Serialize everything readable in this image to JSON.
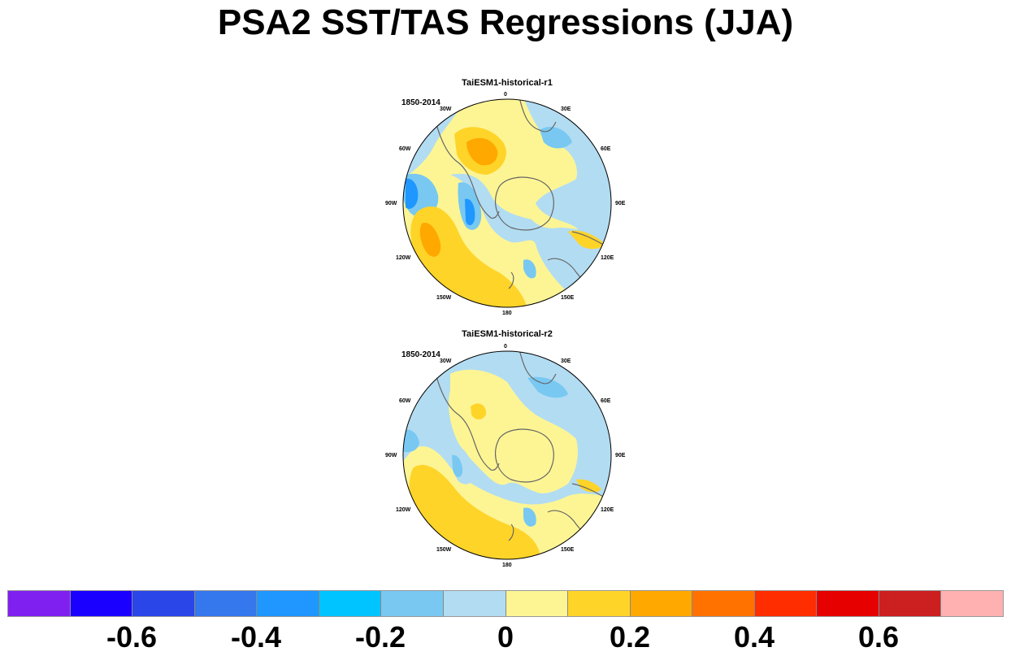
{
  "title": "PSA2 SST/TAS Regressions (JJA)",
  "panels": [
    {
      "title": "TaiESM1-historical-r1",
      "period": "1850-2014",
      "lon_labels": [
        "0",
        "30E",
        "60E",
        "90E",
        "120E",
        "150E",
        "180",
        "150W",
        "120W",
        "90W",
        "60W",
        "30W"
      ]
    },
    {
      "title": "TaiESM1-historical-r2",
      "period": "1850-2014",
      "lon_labels": [
        "0",
        "30E",
        "60E",
        "90E",
        "120E",
        "150E",
        "180",
        "150W",
        "120W",
        "90W",
        "60W",
        "30W"
      ]
    }
  ],
  "colorbar": {
    "colors": [
      "#8020f0",
      "#1a00ff",
      "#2a45e8",
      "#3577ec",
      "#1f97ff",
      "#00c4ff",
      "#78c8f2",
      "#b2dcf2",
      "#fdf594",
      "#ffd429",
      "#ffa800",
      "#ff7200",
      "#ff2d00",
      "#e60000",
      "#cc1f1f",
      "#ffb1b1"
    ],
    "tick_labels": [
      "-0.6",
      "-0.4",
      "-0.2",
      "0",
      "0.2",
      "0.4",
      "0.6"
    ]
  }
}
